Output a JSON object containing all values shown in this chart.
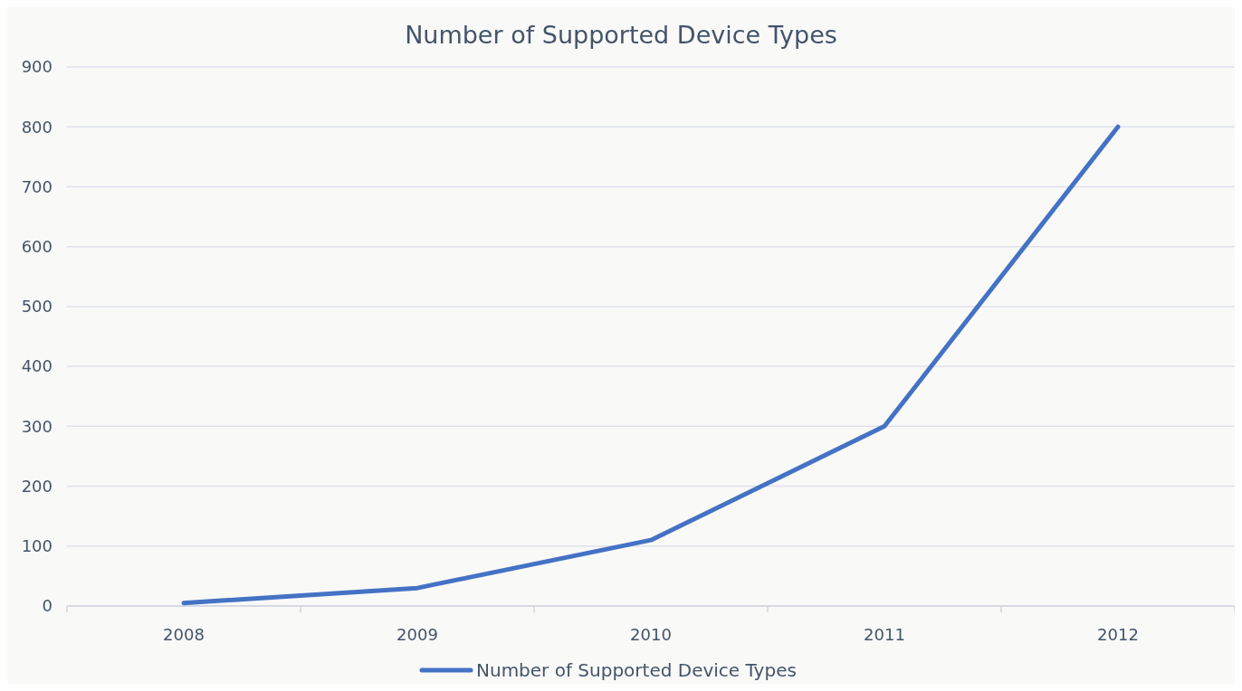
{
  "chart_data": {
    "type": "line",
    "title": "Number of Supported Device Types",
    "categories": [
      "2008",
      "2009",
      "2010",
      "2011",
      "2012"
    ],
    "series": [
      {
        "name": "Number of Supported Device Types",
        "color": "#4472c4",
        "values": [
          5,
          30,
          110,
          300,
          800
        ]
      }
    ],
    "ylim": [
      0,
      900
    ],
    "yticks": [
      0,
      100,
      200,
      300,
      400,
      500,
      600,
      700,
      800,
      900
    ],
    "grid": "y",
    "legend": "bottom"
  }
}
